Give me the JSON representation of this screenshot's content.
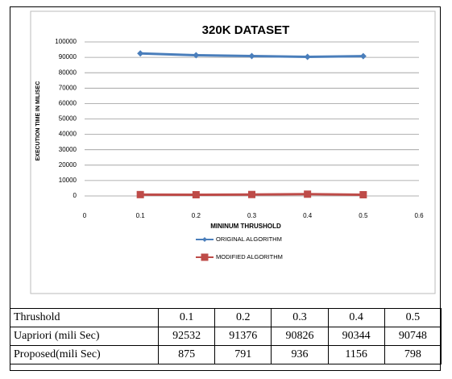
{
  "chart_data": {
    "type": "line",
    "title": "320K DATASET",
    "x_label": "MININUM THRUSHOLD",
    "y_label": "EXECUTION TIME IN MILISEC",
    "x": [
      0.1,
      0.2,
      0.3,
      0.4,
      0.5
    ],
    "series": [
      {
        "name": "ORIGINAL ALGORITHM",
        "color": "#4a7ebb",
        "marker": "diamond",
        "values": [
          92532,
          91376,
          90826,
          90344,
          90748
        ]
      },
      {
        "name": "MODIFIED ALGORITHM",
        "color": "#be4b48",
        "marker": "square",
        "values": [
          875,
          791,
          936,
          1156,
          798
        ]
      }
    ],
    "xlim": [
      0,
      0.6
    ],
    "xticks": [
      0,
      0.1,
      0.2,
      0.3,
      0.4,
      0.5,
      0.6
    ],
    "ylim": [
      0,
      100000
    ],
    "yticks": [
      0,
      10000,
      20000,
      30000,
      40000,
      50000,
      60000,
      70000,
      80000,
      90000,
      100000
    ],
    "grid": true,
    "legend": "bottom"
  },
  "table": {
    "rows": [
      [
        "Thrushold",
        "0.1",
        "0.2",
        "0.3",
        "0.4",
        "0.5"
      ],
      [
        "Uapriori (mili Sec)",
        "92532",
        "91376",
        "90826",
        "90344",
        "90748"
      ],
      [
        "Proposed(mili Sec)",
        "875",
        "791",
        "936",
        "1156",
        "798"
      ]
    ]
  }
}
